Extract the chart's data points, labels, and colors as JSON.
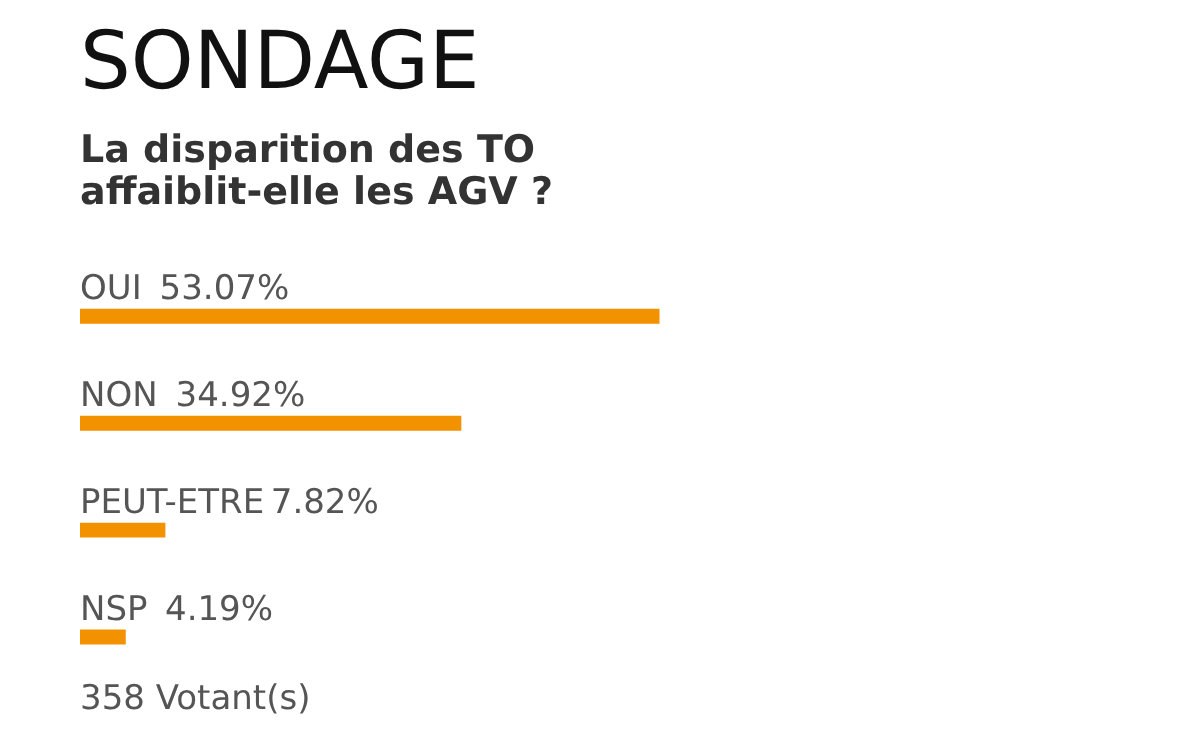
{
  "chart_data": {
    "type": "bar",
    "orientation": "horizontal",
    "title": "SONDAGE",
    "subtitle": "La disparition des TO affaiblit-elle les AGV ?",
    "categories": [
      "OUI",
      "NON",
      "PEUT-ETRE",
      "NSP"
    ],
    "values": [
      53.07,
      34.92,
      7.82,
      4.19
    ],
    "value_labels": [
      "53.07%",
      "34.92%",
      "7.82%",
      "4.19%"
    ],
    "color": "#f39200",
    "tick_labels": false,
    "annotations": [
      "358 Votant(s)"
    ]
  }
}
